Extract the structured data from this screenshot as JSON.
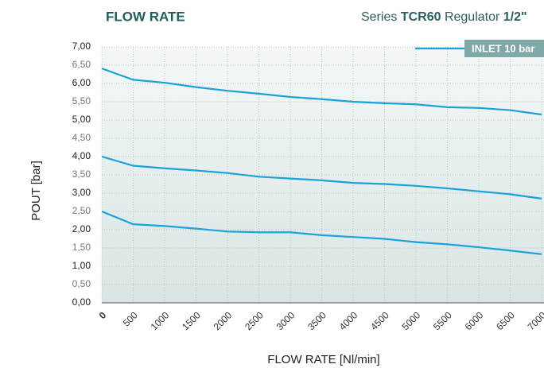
{
  "chart_data": {
    "type": "line",
    "title": "FLOW RATE",
    "subtitle_parts": [
      "Series",
      "TCR60",
      "Regulator",
      "1/2\""
    ],
    "xlabel": "FLOW RATE [Nl/min]",
    "ylabel": "POUT [bar]",
    "x": [
      0,
      500,
      1000,
      1500,
      2000,
      2500,
      3000,
      3500,
      4000,
      4500,
      5000,
      5500,
      6000,
      6500,
      7000
    ],
    "series": [
      {
        "name": "INLET  10 bar",
        "color": "#1aa3d9",
        "values": [
          6.41,
          6.1,
          6.02,
          5.9,
          5.8,
          5.72,
          5.63,
          5.57,
          5.5,
          5.46,
          5.43,
          5.35,
          5.33,
          5.27,
          5.15
        ]
      },
      {
        "color": "#1aa3d9",
        "values": [
          4.0,
          3.75,
          3.68,
          3.62,
          3.55,
          3.45,
          3.4,
          3.35,
          3.28,
          3.25,
          3.2,
          3.13,
          3.05,
          2.97,
          2.85
        ]
      },
      {
        "color": "#1aa3d9",
        "values": [
          2.5,
          2.15,
          2.1,
          2.03,
          1.95,
          1.93,
          1.93,
          1.85,
          1.8,
          1.75,
          1.66,
          1.6,
          1.52,
          1.43,
          1.33
        ]
      }
    ],
    "xlim": [
      0,
      7000
    ],
    "xticks": [
      0,
      500,
      1000,
      1500,
      2000,
      2500,
      3000,
      3500,
      4000,
      4500,
      5000,
      5500,
      6000,
      6500,
      7000
    ],
    "ylim": [
      0,
      7
    ],
    "yticks": [
      {
        "value": 0,
        "label": "0,00"
      },
      {
        "value": 0.5,
        "label": "0,50"
      },
      {
        "value": 1,
        "label": "1,00"
      },
      {
        "value": 1.5,
        "label": "1,50"
      },
      {
        "value": 2,
        "label": "2,00"
      },
      {
        "value": 2.5,
        "label": "2,50"
      },
      {
        "value": 3,
        "label": "3,00"
      },
      {
        "value": 3.5,
        "label": "3,50"
      },
      {
        "value": 4,
        "label": "4,00"
      },
      {
        "value": 4.5,
        "label": "4,50"
      },
      {
        "value": 5,
        "label": "5,00"
      },
      {
        "value": 5.5,
        "label": "5,50"
      },
      {
        "value": 6,
        "label": "6,00"
      },
      {
        "value": 6.5,
        "label": "6,50"
      },
      {
        "value": 7,
        "label": "7,00"
      }
    ],
    "grid": true
  }
}
